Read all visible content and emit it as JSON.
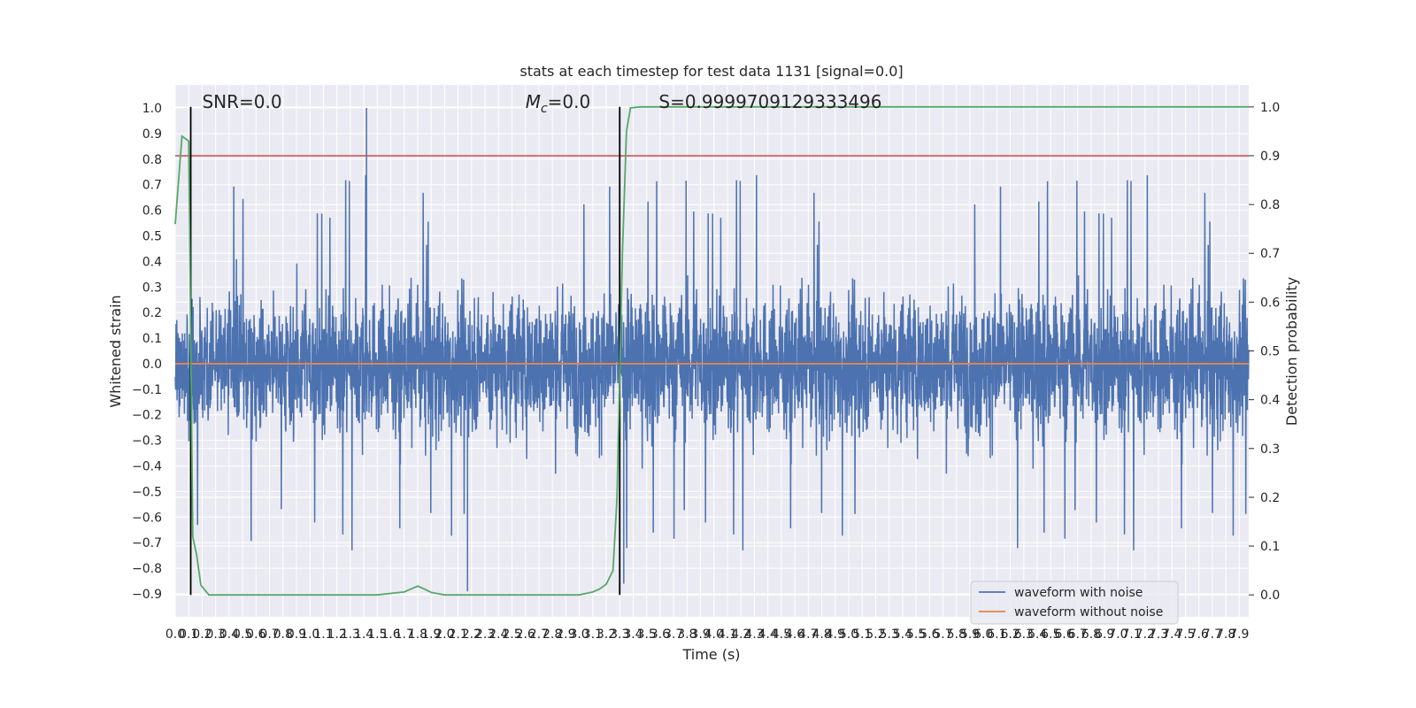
{
  "chart_data": {
    "type": "line",
    "title": "stats at each timestep for test data 1131 [signal=0.0]",
    "xlabel": "Time (s)",
    "ylabel": "Whitened strain",
    "y2label": "Detection probability",
    "xlim": [
      0.0,
      7.97
    ],
    "ylim": [
      -0.99,
      1.09
    ],
    "y2lim": [
      -0.045,
      1.045
    ],
    "x_ticks": [
      0.0,
      0.1,
      0.2,
      0.3,
      0.4,
      0.5,
      0.6,
      0.7,
      0.8,
      0.9,
      1.0,
      1.1,
      1.2,
      1.3,
      1.4,
      1.5,
      1.6,
      1.7,
      1.8,
      1.9,
      2.0,
      2.1,
      2.2,
      2.3,
      2.4,
      2.5,
      2.6,
      2.7,
      2.8,
      2.9,
      3.0,
      3.1,
      3.2,
      3.3,
      3.4,
      3.5,
      3.6,
      3.7,
      3.8,
      3.9,
      4.0,
      4.1,
      4.2,
      4.3,
      4.4,
      4.5,
      4.6,
      4.7,
      4.8,
      4.9,
      5.0,
      5.1,
      5.2,
      5.3,
      5.4,
      5.5,
      5.6,
      5.7,
      5.8,
      5.9,
      6.0,
      6.1,
      6.2,
      6.3,
      6.4,
      6.5,
      6.6,
      6.7,
      6.8,
      6.9,
      7.0,
      7.1,
      7.2,
      7.3,
      7.4,
      7.5,
      7.6,
      7.7,
      7.8,
      7.9
    ],
    "x_tick_labels": [
      "0.0",
      "0.1",
      "0.2",
      "0.3",
      "0.4",
      "0.5",
      "0.6",
      "0.7",
      "0.8",
      "0.9",
      "1.0",
      "1.1",
      "1.2",
      "1.3",
      "1.4",
      "1.5",
      "1.6",
      "1.7",
      "1.8",
      "1.9",
      "2.0",
      "2.1",
      "2.2",
      "2.3",
      "2.4",
      "2.5",
      "2.6",
      "2.7",
      "2.8",
      "2.9",
      "3.0",
      "3.1",
      "3.2",
      "3.3",
      "3.4",
      "3.5",
      "3.6",
      "3.7",
      "3.8",
      "3.9",
      "4.0",
      "4.1",
      "4.2",
      "4.3",
      "4.4",
      "4.5",
      "4.6",
      "4.7",
      "4.8",
      "4.9",
      "5.0",
      "5.1",
      "5.2",
      "5.3",
      "5.4",
      "5.5",
      "5.6",
      "5.7",
      "5.8",
      "5.9",
      "6.0",
      "6.1",
      "6.2",
      "6.3",
      "6.4",
      "6.5",
      "6.6",
      "6.7",
      "6.8",
      "6.9",
      "7.0",
      "7.1",
      "7.2",
      "7.3",
      "7.4",
      "7.5",
      "7.6",
      "7.7",
      "7.8",
      "7.9"
    ],
    "y_ticks": [
      1.0,
      0.9,
      0.8,
      0.7,
      0.6,
      0.5,
      0.4,
      0.3,
      0.2,
      0.1,
      0.0,
      -0.1,
      -0.2,
      -0.3,
      -0.4,
      -0.5,
      -0.6,
      -0.7,
      -0.8,
      -0.9
    ],
    "y_tick_labels": [
      "1.0",
      "0.9",
      "0.8",
      "0.7",
      "0.6",
      "0.5",
      "0.4",
      "0.3",
      "0.2",
      "0.1",
      "0.0",
      "−0.1",
      "−0.2",
      "−0.3",
      "−0.4",
      "−0.5",
      "−0.6",
      "−0.7",
      "−0.8",
      "−0.9"
    ],
    "y2_ticks": [
      1.0,
      0.9,
      0.8,
      0.7,
      0.6,
      0.5,
      0.4,
      0.3,
      0.2,
      0.1,
      0.0
    ],
    "y2_tick_labels": [
      "1.0",
      "0.9",
      "0.8",
      "0.7",
      "0.6",
      "0.5",
      "0.4",
      "0.3",
      "0.2",
      "0.1",
      "0.0"
    ],
    "grid": true,
    "legend_position": "lower-right",
    "series": [
      {
        "name": "waveform with noise",
        "axis": "left",
        "color": "#4c72b0",
        "style": "dense-noise",
        "sample_interval": 0.00195,
        "approx_range": [
          -0.9,
          1.0
        ],
        "notable_points": [
          [
            1.42,
            1.0
          ],
          [
            2.17,
            -0.89
          ],
          [
            3.33,
            -0.86
          ]
        ]
      },
      {
        "name": "waveform without noise",
        "axis": "left",
        "color": "#dd8452",
        "x": [
          0.0,
          7.97
        ],
        "y": [
          0.0,
          0.0
        ]
      },
      {
        "name": "",
        "axis": "right",
        "color": "#55a868",
        "x": [
          0.0,
          0.05,
          0.1,
          0.13,
          0.16,
          0.19,
          0.25,
          0.5,
          1.0,
          1.5,
          1.6,
          1.7,
          1.75,
          1.8,
          1.85,
          1.9,
          2.0,
          2.1,
          2.2,
          2.5,
          3.0,
          3.05,
          3.1,
          3.15,
          3.2,
          3.25,
          3.28,
          3.3,
          3.32,
          3.35,
          3.38,
          3.45,
          3.6,
          4.0,
          5.0,
          6.0,
          7.0,
          7.97
        ],
        "y": [
          0.76,
          0.94,
          0.93,
          0.12,
          0.08,
          0.02,
          0.0,
          0.0,
          0.0,
          0.0,
          0.003,
          0.006,
          0.012,
          0.018,
          0.012,
          0.005,
          0.0,
          0.0,
          0.0,
          0.0,
          0.0,
          0.003,
          0.006,
          0.012,
          0.022,
          0.05,
          0.2,
          0.45,
          0.7,
          0.95,
          0.998,
          1.0,
          1.0,
          1.0,
          1.0,
          1.0,
          1.0,
          1.0
        ]
      },
      {
        "name": "",
        "axis": "right",
        "color": "#c44e52",
        "x": [
          0.0,
          7.97
        ],
        "y": [
          0.9,
          0.9
        ]
      }
    ],
    "vertical_lines": [
      {
        "x": 0.115,
        "color": "#000000"
      },
      {
        "x": 3.3,
        "color": "#000000"
      }
    ],
    "annotations": [
      {
        "text": "SNR=0.0",
        "x": 0.2,
        "y": 1.0
      },
      {
        "prefix": "M",
        "sub": "c",
        "suffix": "=0.0",
        "x": 2.6,
        "y": 1.0
      },
      {
        "text": "S=0.9999709129333496",
        "x": 3.59,
        "y": 1.0
      }
    ]
  }
}
